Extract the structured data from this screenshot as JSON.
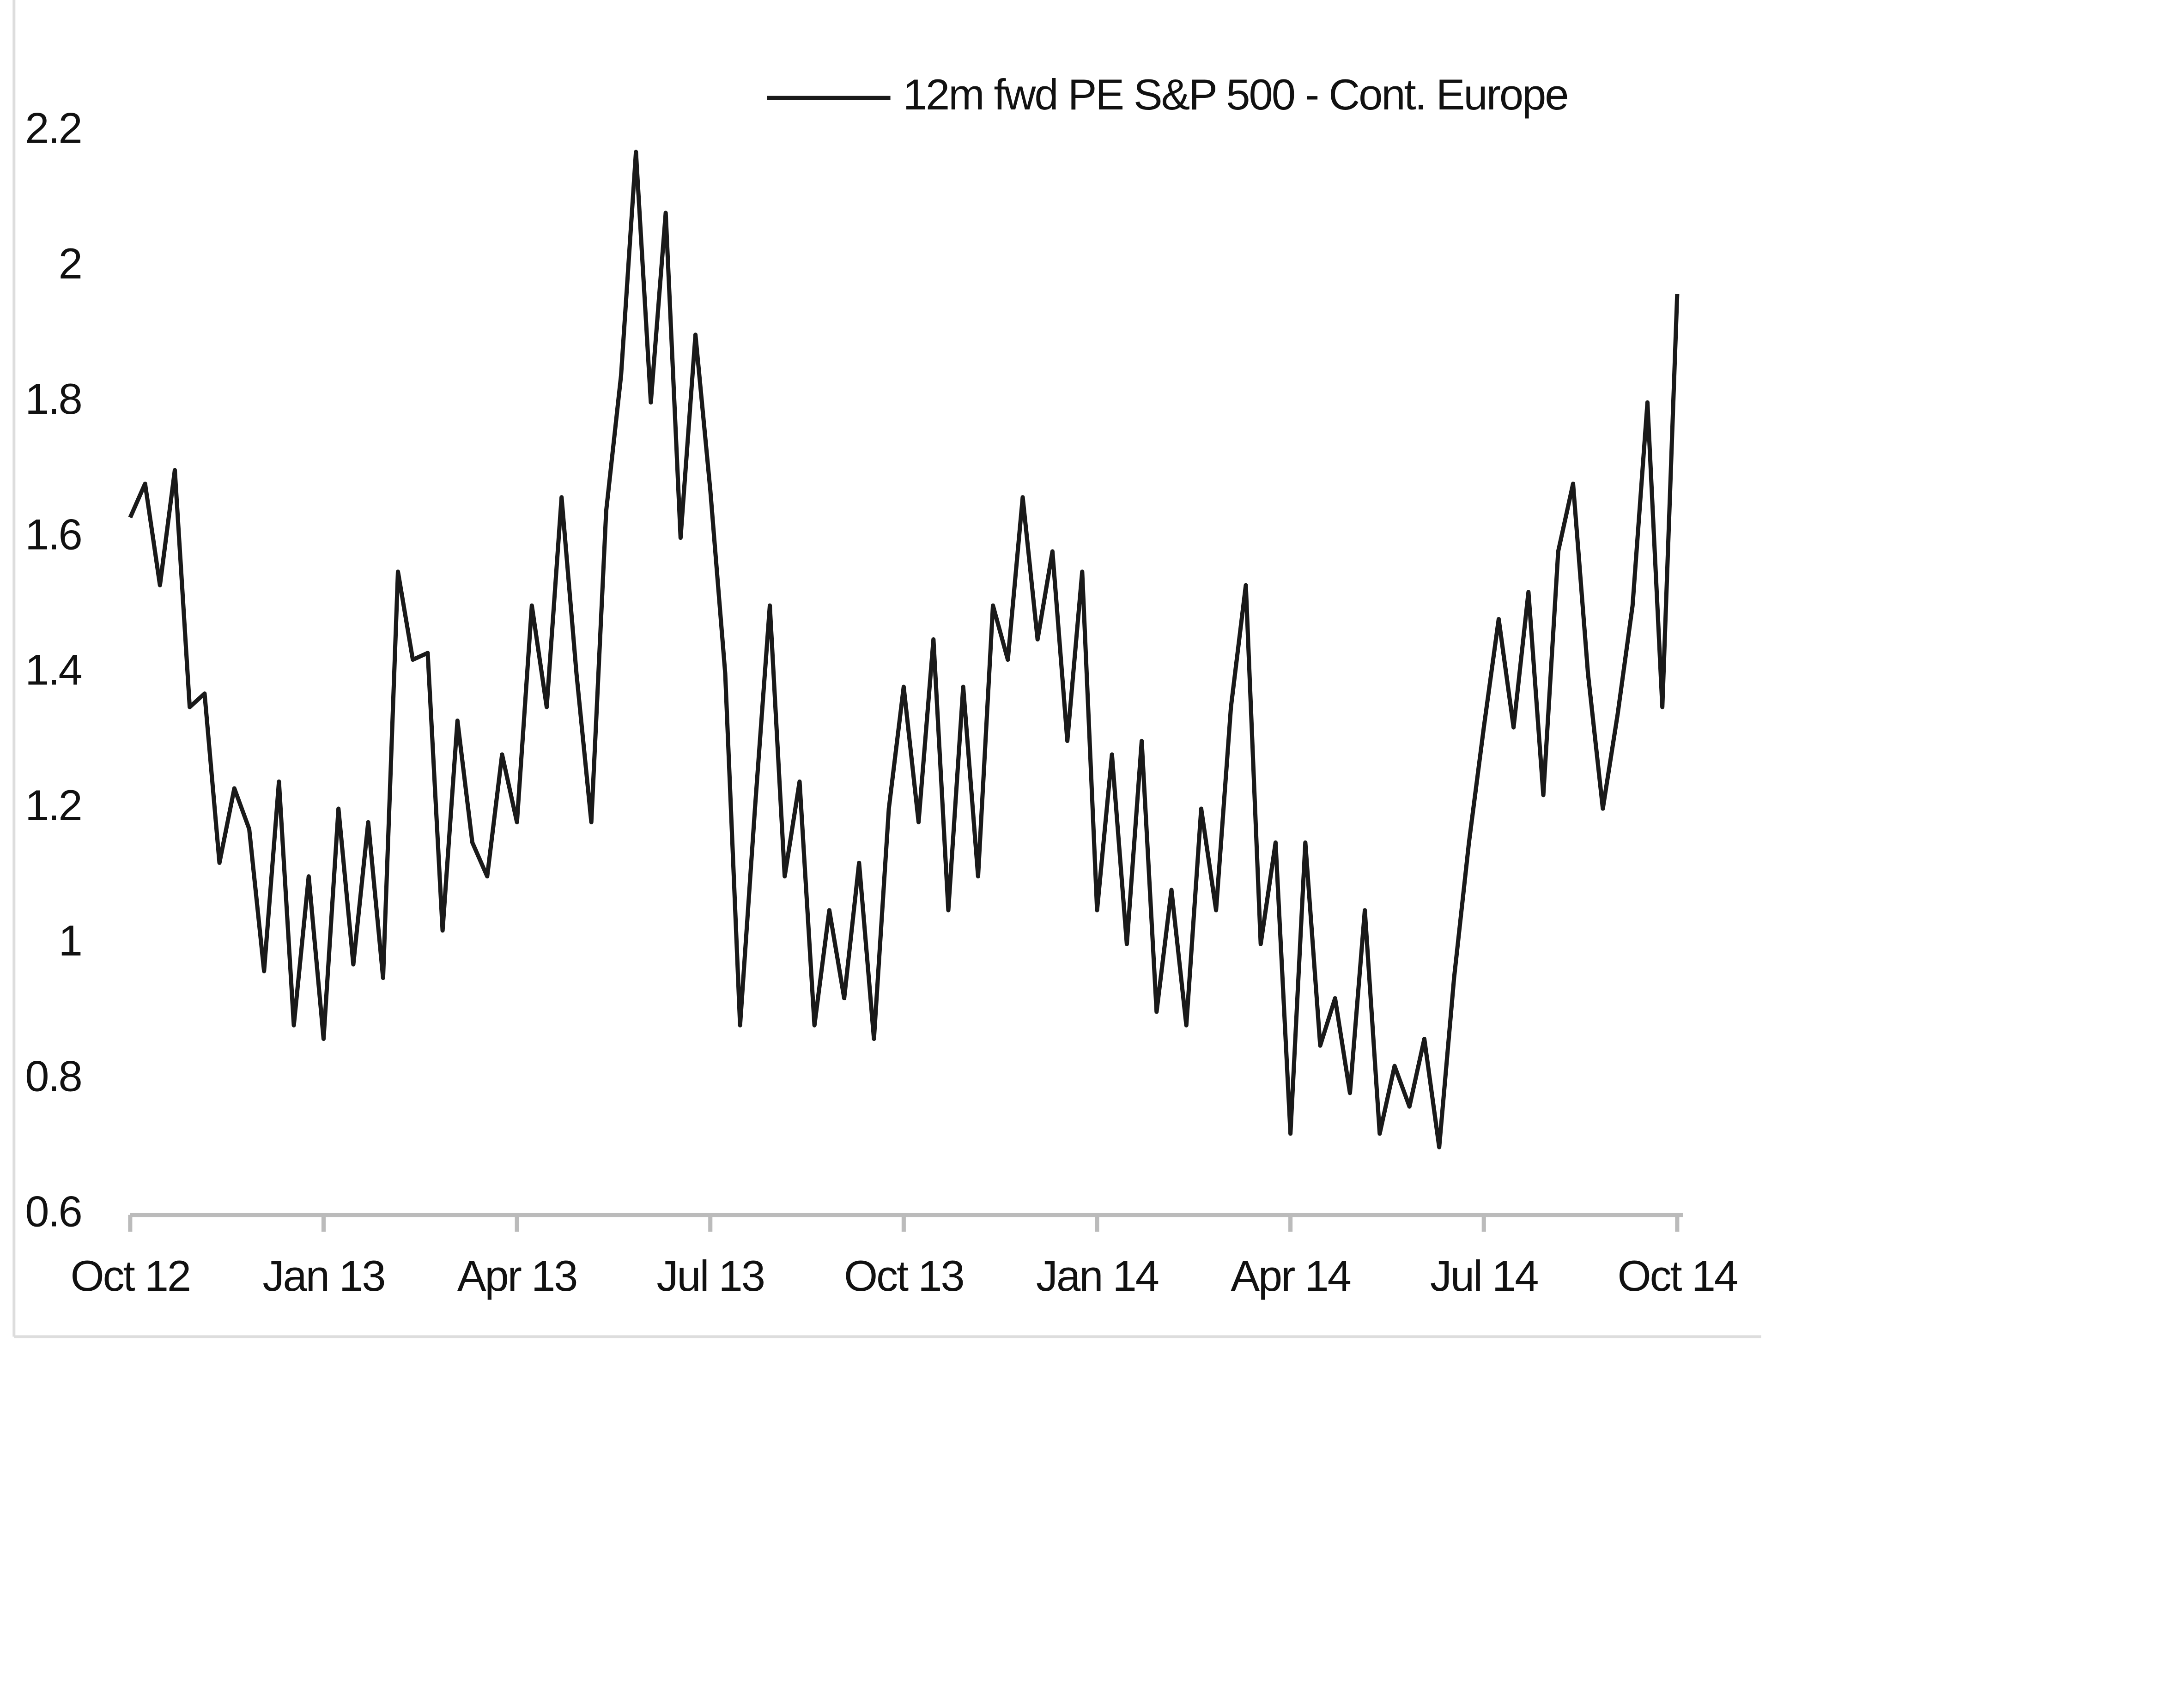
{
  "chart_data": {
    "type": "line",
    "legend": "top",
    "series": [
      {
        "name": "12m fwd PE S&P 500 - Cont. Europe",
        "color": "#1a1a1a",
        "values": [
          1.63,
          1.68,
          1.53,
          1.7,
          1.35,
          1.37,
          1.12,
          1.23,
          1.17,
          0.96,
          1.24,
          0.88,
          1.1,
          0.86,
          1.2,
          0.97,
          1.18,
          0.95,
          1.55,
          1.42,
          1.43,
          1.02,
          1.33,
          1.15,
          1.1,
          1.28,
          1.18,
          1.5,
          1.35,
          1.66,
          1.4,
          1.18,
          1.64,
          1.84,
          2.17,
          1.8,
          2.08,
          1.6,
          1.9,
          1.67,
          1.4,
          0.88,
          1.2,
          1.5,
          1.1,
          1.24,
          0.88,
          1.05,
          0.92,
          1.12,
          0.86,
          1.2,
          1.38,
          1.18,
          1.45,
          1.05,
          1.38,
          1.1,
          1.5,
          1.42,
          1.66,
          1.45,
          1.58,
          1.3,
          1.55,
          1.05,
          1.28,
          1.0,
          1.3,
          0.9,
          1.08,
          0.88,
          1.2,
          1.05,
          1.35,
          1.53,
          1.0,
          1.15,
          0.72,
          1.15,
          0.85,
          0.92,
          0.78,
          1.05,
          0.72,
          0.82,
          0.76,
          0.86,
          0.7,
          0.95,
          1.15,
          1.32,
          1.48,
          1.32,
          1.52,
          1.22,
          1.58,
          1.68,
          1.4,
          1.2,
          1.34,
          1.5,
          1.8,
          1.35,
          1.96
        ]
      }
    ],
    "xlim": [
      0,
      104
    ],
    "xticks": [
      {
        "value": 0,
        "label": "Oct 12"
      },
      {
        "value": 13,
        "label": "Jan 13"
      },
      {
        "value": 26,
        "label": "Apr 13"
      },
      {
        "value": 39,
        "label": "Jul 13"
      },
      {
        "value": 52,
        "label": "Oct 13"
      },
      {
        "value": 65,
        "label": "Jan 14"
      },
      {
        "value": 78,
        "label": "Apr 14"
      },
      {
        "value": 91,
        "label": "Jul 14"
      },
      {
        "value": 104,
        "label": "Oct 14"
      }
    ],
    "ylim": [
      0.6,
      2.2
    ],
    "yticks": [
      0.6,
      0.8,
      1,
      1.2,
      1.4,
      1.6,
      1.8,
      2,
      2.2
    ],
    "grid": false
  }
}
